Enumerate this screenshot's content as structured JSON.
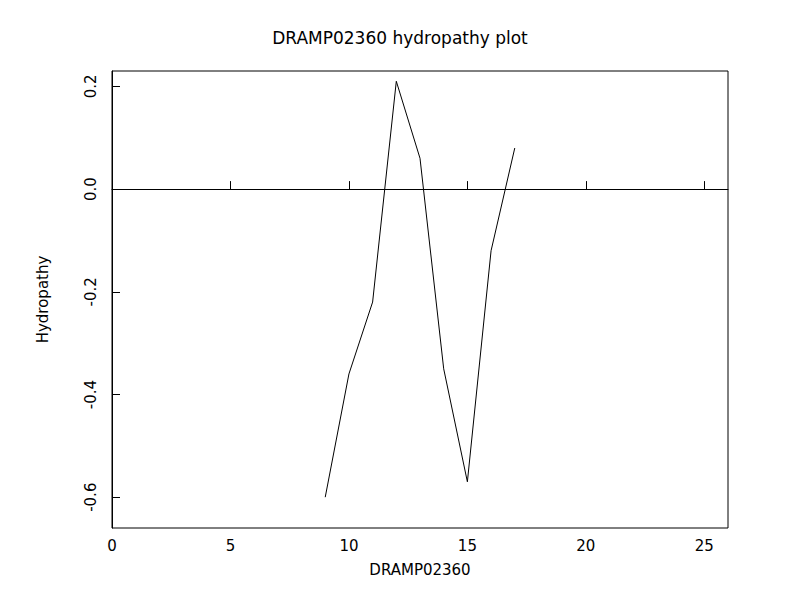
{
  "chart_data": {
    "type": "line",
    "title": "DRAMP02360 hydropathy plot",
    "x_label": "DRAMP02360",
    "y_label": "Hydropathy",
    "x": [
      9,
      10,
      11,
      12,
      13,
      14,
      15,
      16,
      17
    ],
    "values": [
      -0.6,
      -0.36,
      -0.22,
      0.21,
      0.06,
      -0.35,
      -0.57,
      -0.12,
      0.08
    ],
    "color": "#000000",
    "xlim": [
      0,
      26
    ],
    "xticks": [
      0,
      5,
      10,
      15,
      20,
      25
    ],
    "ylim": [
      -0.66,
      0.23
    ],
    "yticks": [
      -0.6,
      -0.4,
      -0.2,
      {
        "value": 0,
        "label": "0.0"
      },
      0.2
    ],
    "grid": false
  }
}
